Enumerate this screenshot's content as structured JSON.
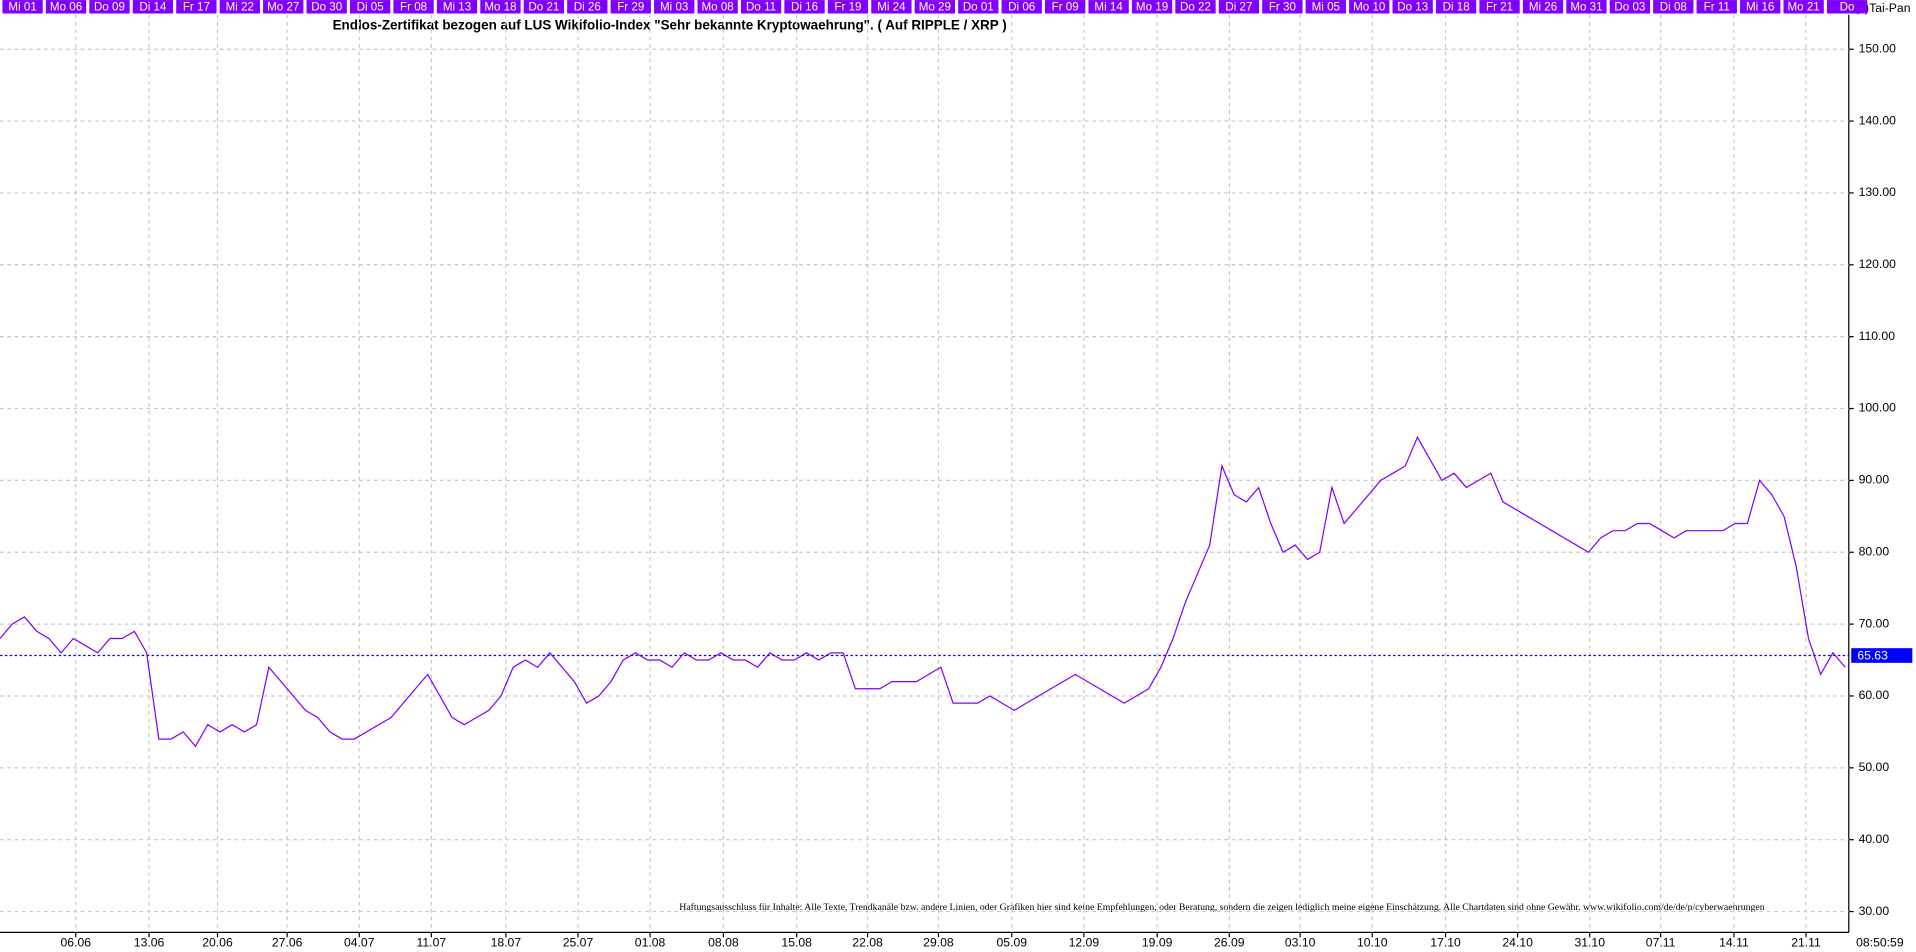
{
  "chart_data": {
    "type": "line",
    "title": "Endlos-Zertifikat bezogen auf LUS Wikifolio-Index \"Sehr bekannte Kryptowaehrung\". ( Auf RIPPLE / XRP )",
    "copyright": "(c)Tai-Pan",
    "disclaimer": "Haftungsausschluss für Inhalte: Alle Texte, Trendkanäle bzw. andere Linien, oder Grafiken hier sind keine Empfehlungen, oder Beratung, sondern die zeigen lediglich meine eigene Einschätzung. Alle Chartdaten sind ohne Gewähr.  www.wikifolio.com/de/de/p/cyberwaehrungen",
    "timestamp": "08:50:59",
    "top_labels": [
      "Mi 01",
      "Mo 06",
      "Do 09",
      "Di 14",
      "Fr 17",
      "Mi 22",
      "Mo 27",
      "Do 30",
      "Di 05",
      "Fr 08",
      "Mi 13",
      "Mo 18",
      "Do 21",
      "Di 26",
      "Fr 29",
      "Mi 03",
      "Mo 08",
      "Do 11",
      "Di 16",
      "Fr 19",
      "Mi 24",
      "Mo 29",
      "Do 01",
      "Di 06",
      "Fr 09",
      "Mi 14",
      "Mo 19",
      "Do 22",
      "Di 27",
      "Fr 30",
      "Mi 05",
      "Mo 10",
      "Do 13",
      "Di 18",
      "Fr 21",
      "Mi 26",
      "Mo 31",
      "Do 03",
      "Di 08",
      "Fr 11",
      "Mi 16",
      "Mo 21",
      "Do"
    ],
    "x": [
      0,
      1,
      2,
      3,
      4,
      5,
      6,
      7,
      8,
      9,
      10,
      11,
      12,
      13,
      14,
      15,
      16,
      17,
      18,
      19,
      20,
      21,
      22,
      23,
      24,
      25,
      26,
      27,
      28,
      29,
      30,
      31,
      32,
      33,
      34,
      35,
      36,
      37,
      38,
      39,
      40,
      41,
      42,
      43,
      44,
      45,
      46,
      47,
      48,
      49,
      50,
      51,
      52,
      53,
      54,
      55,
      56,
      57,
      58,
      59,
      60,
      61,
      62,
      63,
      64,
      65,
      66,
      67,
      68,
      69,
      70,
      71,
      72,
      73,
      74,
      75,
      76,
      77,
      78,
      79,
      80,
      81,
      82,
      83,
      84,
      85,
      86,
      87,
      88,
      89,
      90,
      91,
      92,
      93,
      94,
      95,
      96,
      97,
      98,
      99,
      100,
      101,
      102,
      103,
      104,
      105,
      106,
      107,
      108,
      109,
      110,
      111,
      112,
      113,
      114,
      115,
      116,
      117,
      118,
      119,
      120,
      121,
      122,
      123,
      124,
      125,
      126,
      127,
      128,
      129,
      130,
      131,
      132,
      133,
      134,
      135,
      136,
      137,
      138,
      139,
      140,
      141,
      142,
      143,
      144,
      145,
      146,
      147,
      148,
      149,
      150,
      151
    ],
    "series": [
      {
        "name": "RIPPLE / XRP",
        "color": "#8000ff",
        "values": [
          68,
          70,
          71,
          69,
          68,
          66,
          68,
          67,
          66,
          68,
          68,
          69,
          66,
          54,
          54,
          55,
          53,
          56,
          55,
          56,
          55,
          56,
          64,
          62,
          60,
          58,
          57,
          55,
          54,
          54,
          55,
          56,
          57,
          59,
          61,
          63,
          60,
          57,
          56,
          57,
          58,
          60,
          64,
          65,
          64,
          66,
          64,
          62,
          59,
          60,
          62,
          65,
          66,
          65,
          65,
          64,
          66,
          65,
          65,
          66,
          65,
          65,
          64,
          66,
          65,
          65,
          66,
          65,
          66,
          66,
          61,
          61,
          61,
          62,
          62,
          62,
          63,
          64,
          59,
          59,
          59,
          60,
          59,
          58,
          59,
          60,
          61,
          62,
          63,
          62,
          61,
          60,
          59,
          60,
          61,
          64,
          68,
          73,
          77,
          81,
          92,
          88,
          87,
          89,
          84,
          80,
          81,
          79,
          80,
          89,
          84,
          86,
          88,
          90,
          91,
          92,
          96,
          93,
          90,
          91,
          89,
          90,
          91,
          87,
          86,
          85,
          84,
          83,
          82,
          81,
          80,
          82,
          83,
          83,
          84,
          84,
          83,
          82,
          83,
          83,
          83,
          83,
          84,
          84,
          90,
          88,
          85,
          78,
          68,
          63,
          66,
          64
        ]
      }
    ],
    "last_value": 65.63,
    "last_value_color": "#0000ff",
    "xlim": [
      0,
      151.3
    ],
    "xticks": [
      {
        "value": 6.2,
        "label": "06.06"
      },
      {
        "value": 12.2,
        "label": "13.06"
      },
      {
        "value": 17.8,
        "label": "20.06"
      },
      {
        "value": 23.5,
        "label": "27.06"
      },
      {
        "value": 29.4,
        "label": "04.07"
      },
      {
        "value": 35.3,
        "label": "11.07"
      },
      {
        "value": 41.4,
        "label": "18.07"
      },
      {
        "value": 47.3,
        "label": "25.07"
      },
      {
        "value": 53.2,
        "label": "01.08"
      },
      {
        "value": 59.2,
        "label": "08.08"
      },
      {
        "value": 65.2,
        "label": "15.08"
      },
      {
        "value": 71.0,
        "label": "22.08"
      },
      {
        "value": 76.8,
        "label": "29.08"
      },
      {
        "value": 82.8,
        "label": "05.09"
      },
      {
        "value": 88.7,
        "label": "12.09"
      },
      {
        "value": 94.7,
        "label": "19.09"
      },
      {
        "value": 100.6,
        "label": "26.09"
      },
      {
        "value": 106.4,
        "label": "03.10"
      },
      {
        "value": 112.3,
        "label": "10.10"
      },
      {
        "value": 118.3,
        "label": "17.10"
      },
      {
        "value": 124.2,
        "label": "24.10"
      },
      {
        "value": 130.1,
        "label": "31.10"
      },
      {
        "value": 135.9,
        "label": "07.11"
      },
      {
        "value": 141.9,
        "label": "14.11"
      },
      {
        "value": 147.8,
        "label": "21.11"
      }
    ],
    "ylim": [
      27.1,
      154.8
    ],
    "yticks": [
      {
        "value": 30,
        "label": "30.00"
      },
      {
        "value": 40,
        "label": "40.00"
      },
      {
        "value": 50,
        "label": "50.00"
      },
      {
        "value": 60,
        "label": "60.00"
      },
      {
        "value": 70,
        "label": "70.00"
      },
      {
        "value": 80,
        "label": "80.00"
      },
      {
        "value": 90,
        "label": "90.00"
      },
      {
        "value": 100,
        "label": "100.00"
      },
      {
        "value": 110,
        "label": "110.00"
      },
      {
        "value": 120,
        "label": "120.00"
      },
      {
        "value": 130,
        "label": "130.00"
      },
      {
        "value": 140,
        "label": "140.00"
      },
      {
        "value": 150,
        "label": "150.00"
      }
    ],
    "grid": true
  }
}
